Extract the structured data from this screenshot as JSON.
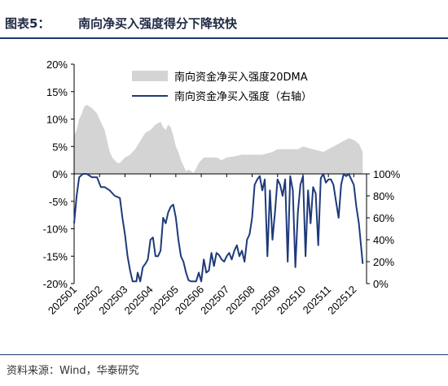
{
  "header": {
    "figure_label": "图表5：",
    "figure_title": "南向净买入强度得分下降较快"
  },
  "footer": {
    "source": "资料来源：Wind，华泰研究"
  },
  "colors": {
    "area": "#d4d4d4",
    "line": "#1f3a7a",
    "rule": "#1f3a6e"
  },
  "chart_data": {
    "type": "area",
    "title": "",
    "xlabel": "",
    "ylabel": "",
    "x_ticks": [
      "202501",
      "202502",
      "202503",
      "202504",
      "202505",
      "202506",
      "202507",
      "202508",
      "202509",
      "202510",
      "202511",
      "202512"
    ],
    "y_left_ticks": [
      "20%",
      "15%",
      "10%",
      "5%",
      "0%",
      "-5%",
      "-10%",
      "-15%",
      "-20%"
    ],
    "y_right_ticks": [
      "100%",
      "80%",
      "60%",
      "40%",
      "20%",
      "0%"
    ],
    "y_left_lim": [
      -20,
      20
    ],
    "y_right_lim": [
      0,
      100
    ],
    "legend_position": "top-right",
    "series": [
      {
        "name": "南向资金净买入强度20DMA",
        "type": "area",
        "axis": "left",
        "x": [
          0,
          0.1,
          0.2,
          0.3,
          0.4,
          0.5,
          0.6,
          0.7,
          0.8,
          0.9,
          1.0,
          1.1,
          1.2,
          1.3,
          1.4,
          1.5,
          1.6,
          1.7,
          1.8,
          1.9,
          2.0,
          2.2,
          2.4,
          2.6,
          2.8,
          3.0,
          3.1,
          3.2,
          3.4,
          3.5,
          3.6,
          3.7,
          3.8,
          3.9,
          4.0,
          4.1,
          4.2,
          4.3,
          4.4,
          4.5,
          4.6,
          4.7,
          4.8,
          4.9,
          5.0,
          5.1,
          5.2,
          5.4,
          5.6,
          5.8,
          6.0,
          6.3,
          6.6,
          7.0,
          7.4,
          7.8,
          8.0,
          8.4,
          8.8,
          9.0,
          9.4,
          9.8,
          10.0,
          10.2,
          10.4,
          10.6,
          10.8,
          11.0,
          11.2,
          11.35
        ],
        "values": [
          7,
          8,
          10,
          11,
          12.3,
          12.6,
          12.3,
          12,
          11.5,
          11,
          10,
          9,
          8,
          6,
          4,
          3,
          2.5,
          2,
          2,
          2.5,
          3,
          3.5,
          4.5,
          6,
          7.5,
          8,
          8.5,
          9,
          9.5,
          8.5,
          8,
          9,
          8.5,
          7,
          5,
          4,
          2.5,
          1.5,
          0.5,
          0.8,
          0.5,
          0.2,
          1,
          2,
          2.5,
          3,
          3,
          3,
          3,
          2.5,
          3,
          3.2,
          3.5,
          3.5,
          3.5,
          4,
          4.5,
          4.5,
          4.5,
          5,
          4.5,
          4,
          4.5,
          5,
          5.5,
          6,
          6.5,
          6.2,
          5.5,
          4
        ]
      },
      {
        "name": "南向资金净买入强度（右轴）",
        "type": "line",
        "axis": "right",
        "x": [
          0,
          0.1,
          0.2,
          0.35,
          0.5,
          0.7,
          0.9,
          1.05,
          1.2,
          1.4,
          1.6,
          1.8,
          1.9,
          2.0,
          2.05,
          2.1,
          2.2,
          2.3,
          2.45,
          2.5,
          2.6,
          2.7,
          2.8,
          2.9,
          3.0,
          3.1,
          3.2,
          3.3,
          3.4,
          3.5,
          3.6,
          3.7,
          3.8,
          3.9,
          4.0,
          4.1,
          4.2,
          4.3,
          4.4,
          4.5,
          4.6,
          4.7,
          4.8,
          4.9,
          5.0,
          5.1,
          5.2,
          5.3,
          5.4,
          5.5,
          5.6,
          5.7,
          5.8,
          5.9,
          6.0,
          6.1,
          6.2,
          6.3,
          6.4,
          6.5,
          6.6,
          6.7,
          6.8,
          6.9,
          7.0,
          7.1,
          7.2,
          7.3,
          7.4,
          7.5,
          7.6,
          7.7,
          7.8,
          7.9,
          8.0,
          8.1,
          8.2,
          8.3,
          8.4,
          8.5,
          8.6,
          8.7,
          8.8,
          8.9,
          9.0,
          9.1,
          9.2,
          9.3,
          9.4,
          9.5,
          9.6,
          9.7,
          9.8,
          9.9,
          10.0,
          10.1,
          10.2,
          10.3,
          10.4,
          10.5,
          10.6,
          10.7,
          10.8,
          10.9,
          11.0,
          11.1,
          11.2,
          11.3,
          11.35
        ],
        "values": [
          55,
          80,
          97,
          100,
          100,
          97,
          97,
          88,
          88,
          85,
          80,
          78,
          60,
          45,
          35,
          25,
          12,
          2,
          2,
          10,
          2,
          15,
          18,
          22,
          40,
          42,
          25,
          25,
          30,
          60,
          55,
          65,
          70,
          72,
          60,
          40,
          25,
          20,
          10,
          3,
          2,
          2,
          2,
          10,
          2,
          22,
          10,
          12,
          28,
          16,
          28,
          26,
          22,
          20,
          25,
          28,
          22,
          30,
          35,
          25,
          30,
          20,
          40,
          45,
          60,
          90,
          95,
          98,
          85,
          95,
          25,
          85,
          40,
          65,
          95,
          90,
          80,
          95,
          20,
          98,
          85,
          15,
          65,
          90,
          98,
          25,
          85,
          55,
          88,
          82,
          35,
          96,
          100,
          92,
          95,
          95,
          90,
          75,
          60,
          90,
          100,
          98,
          100,
          95,
          90,
          70,
          55,
          30,
          18
        ]
      }
    ]
  }
}
